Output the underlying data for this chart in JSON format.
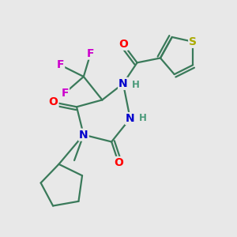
{
  "bg_color": "#e8e8e8",
  "bond_color": "#3a7a5a",
  "bond_width": 1.6,
  "atom_colors": {
    "O": "#ff0000",
    "N": "#0000cc",
    "F": "#cc00cc",
    "S": "#aaaa00",
    "H": "#4a9a7a",
    "C": "#3a7a5a"
  },
  "figsize": [
    3.0,
    3.0
  ],
  "dpi": 100
}
